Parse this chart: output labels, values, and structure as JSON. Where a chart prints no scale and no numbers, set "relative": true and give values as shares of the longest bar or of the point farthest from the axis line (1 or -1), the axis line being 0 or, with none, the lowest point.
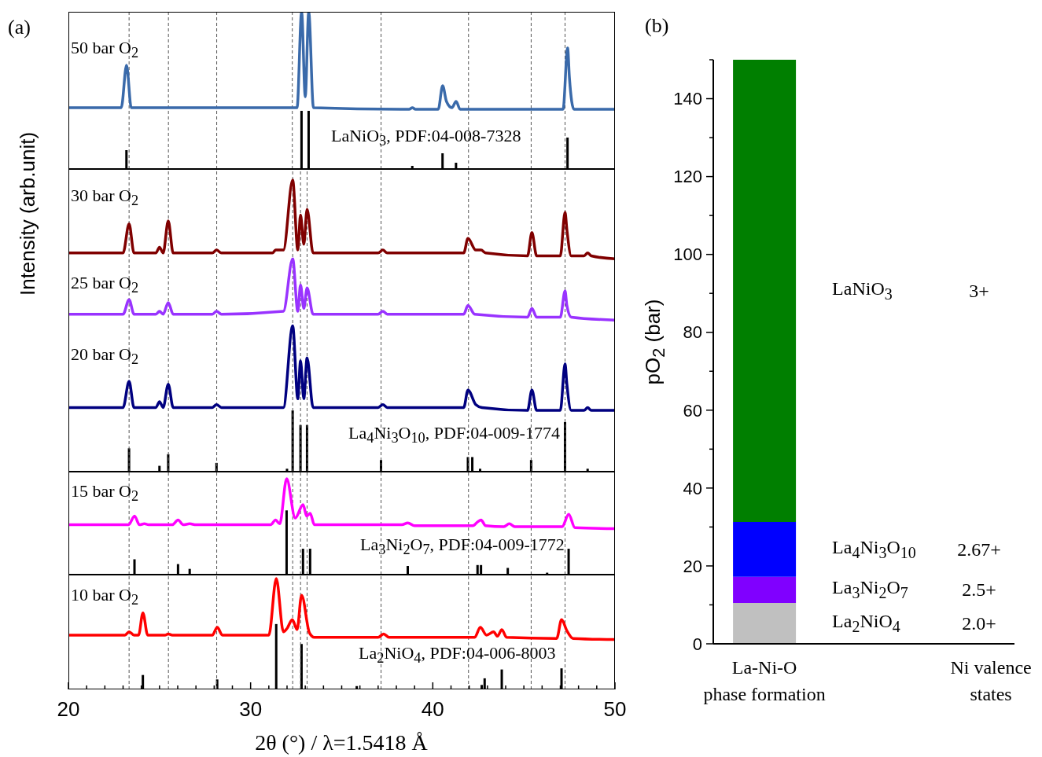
{
  "chart_data": [
    {
      "type": "line",
      "title": "(a)",
      "relative": true,
      "xlim": [
        20,
        50
      ],
      "tick_labels": false,
      "series": [
        {
          "name": "50 bar O$_{2}$",
          "color": "#3a6aaa",
          "x": [
            20,
            22.9,
            23.19,
            23.45,
            32.55,
            32.8,
            33.0,
            33.19,
            33.45,
            38.7,
            38.88,
            39.05,
            40.3,
            40.54,
            40.75,
            41.05,
            41.28,
            41.5,
            47.15,
            47.4,
            47.5,
            47.75,
            50
          ],
          "values": [
            0.39,
            0.39,
            0.66,
            0.39,
            0.39,
            1,
            0.46,
            1,
            0.39,
            0.38,
            0.39,
            0.38,
            0.38,
            0.53,
            0.43,
            0.39,
            0.43,
            0.38,
            0.38,
            0.77,
            0.58,
            0.38,
            0.38
          ]
        },
        {
          "type": "bar",
          "name": "LaNiO$_{3}$, PDF:04-008-7328",
          "color": "#000000",
          "x": [
            23.19,
            32.8,
            33.19,
            38.88,
            40.54,
            41.28,
            47.4
          ],
          "values": [
            0.12,
            0.37,
            0.37,
            0.02,
            0.1,
            0.04,
            0.2
          ]
        }
      ],
      "ref_lines": [
        {
          "axis": "x",
          "value": 23.33
        },
        {
          "axis": "x",
          "value": 25.49
        },
        {
          "axis": "x",
          "value": 28.14
        },
        {
          "axis": "x",
          "value": 32.29
        },
        {
          "axis": "x",
          "value": 37.16
        },
        {
          "axis": "x",
          "value": 41.96
        },
        {
          "axis": "x",
          "value": 45.4
        },
        {
          "axis": "x",
          "value": 47.26
        }
      ]
    },
    {
      "type": "line",
      "ylabel": "Intensity (arb.unit)",
      "relative": true,
      "xlim": [
        20,
        50
      ],
      "tick_labels": false,
      "series": [
        {
          "name": "30 bar O$_{2}$",
          "color": "#800000",
          "x": [
            20,
            23.0,
            23.33,
            23.6,
            24.8,
            25.0,
            25.2,
            25.48,
            25.75,
            27.9,
            28.13,
            28.4,
            31.2,
            31.37,
            31.8,
            32.31,
            32.59,
            32.74,
            32.92,
            33.1,
            33.43,
            37.0,
            37.26,
            37.5,
            41.7,
            41.93,
            42.36,
            42.65,
            42.9,
            45.2,
            45.44,
            45.7,
            47.0,
            47.26,
            47.36,
            47.6,
            48.3,
            48.5,
            48.7,
            50
          ],
          "values": [
            0.75,
            0.75,
            0.85,
            0.75,
            0.75,
            0.77,
            0.75,
            0.86,
            0.75,
            0.75,
            0.76,
            0.75,
            0.75,
            0.76,
            0.76,
            1.0,
            0.76,
            0.88,
            0.78,
            0.9,
            0.75,
            0.75,
            0.76,
            0.75,
            0.75,
            0.8,
            0.76,
            0.76,
            0.75,
            0.74,
            0.82,
            0.74,
            0.74,
            0.89,
            0.83,
            0.74,
            0.74,
            0.75,
            0.74,
            0.73
          ]
        },
        {
          "name": "25 bar O$_{2}$",
          "color": "#9933ff",
          "x": [
            20,
            23.0,
            23.33,
            23.6,
            24.8,
            25.0,
            25.2,
            25.48,
            25.75,
            27.9,
            28.13,
            28.4,
            31.8,
            32.31,
            32.59,
            32.74,
            32.92,
            33.1,
            33.43,
            37.0,
            37.26,
            37.5,
            41.7,
            41.93,
            42.3,
            45.2,
            45.44,
            45.7,
            47.0,
            47.26,
            47.36,
            47.6,
            50
          ],
          "values": [
            0.54,
            0.54,
            0.59,
            0.54,
            0.54,
            0.55,
            0.54,
            0.58,
            0.54,
            0.54,
            0.55,
            0.54,
            0.55,
            0.73,
            0.55,
            0.64,
            0.56,
            0.63,
            0.54,
            0.54,
            0.55,
            0.54,
            0.54,
            0.57,
            0.54,
            0.53,
            0.56,
            0.53,
            0.53,
            0.62,
            0.57,
            0.53,
            0.52
          ]
        },
        {
          "name": "20 bar O$_{2}$",
          "color": "#000080",
          "x": [
            20,
            23.0,
            23.33,
            23.6,
            24.8,
            25.0,
            25.2,
            25.48,
            25.75,
            27.9,
            28.13,
            28.4,
            31.8,
            32.31,
            32.59,
            32.74,
            32.92,
            33.1,
            33.43,
            37.0,
            37.26,
            37.5,
            41.7,
            41.93,
            42.36,
            42.7,
            45.2,
            45.44,
            45.7,
            47.0,
            47.26,
            47.36,
            47.6,
            48.3,
            48.5,
            48.7,
            50
          ],
          "values": [
            0.22,
            0.22,
            0.31,
            0.22,
            0.22,
            0.24,
            0.22,
            0.3,
            0.22,
            0.22,
            0.23,
            0.22,
            0.22,
            0.5,
            0.25,
            0.38,
            0.25,
            0.39,
            0.22,
            0.22,
            0.23,
            0.22,
            0.22,
            0.28,
            0.23,
            0.22,
            0.21,
            0.28,
            0.21,
            0.21,
            0.37,
            0.3,
            0.21,
            0.21,
            0.22,
            0.21,
            0.21
          ]
        },
        {
          "type": "bar",
          "name": "La$_{4}$Ni$_{3}$O$_{10}$, PDF:04-009-1774",
          "color": "#000000",
          "x": [
            23.33,
            25.0,
            25.48,
            28.13,
            32.0,
            32.31,
            32.74,
            33.1,
            37.16,
            41.93,
            42.17,
            42.6,
            45.4,
            47.26,
            48.5
          ],
          "values": [
            0.08,
            0.02,
            0.06,
            0.03,
            0.01,
            0.21,
            0.16,
            0.16,
            0.04,
            0.05,
            0.05,
            0.01,
            0.04,
            0.17,
            0.01
          ]
        }
      ],
      "ref_lines": [
        {
          "axis": "x",
          "value": 23.33
        },
        {
          "axis": "x",
          "value": 25.49
        },
        {
          "axis": "x",
          "value": 28.14
        },
        {
          "axis": "x",
          "value": 32.31
        },
        {
          "axis": "x",
          "value": 32.74
        },
        {
          "axis": "x",
          "value": 33.1
        },
        {
          "axis": "x",
          "value": 37.16
        },
        {
          "axis": "x",
          "value": 41.96
        },
        {
          "axis": "x",
          "value": 45.4
        },
        {
          "axis": "x",
          "value": 47.26
        }
      ]
    },
    {
      "type": "line",
      "relative": true,
      "xlim": [
        20,
        50
      ],
      "tick_labels": false,
      "series": [
        {
          "name": "15 bar O$_{2}$",
          "color": "#ff00ff",
          "x": [
            20,
            23.3,
            23.63,
            23.9,
            24.17,
            24.4,
            25.7,
            26.02,
            26.3,
            26.66,
            27.0,
            31.1,
            31.37,
            31.6,
            31.98,
            32.45,
            32.88,
            33.08,
            33.27,
            33.5,
            38.3,
            38.63,
            39.0,
            42.2,
            42.46,
            42.65,
            42.9,
            43.9,
            44.2,
            44.5,
            47.1,
            47.46,
            47.8,
            50
          ],
          "values": [
            0.52,
            0.52,
            0.61,
            0.52,
            0.53,
            0.52,
            0.52,
            0.57,
            0.52,
            0.53,
            0.52,
            0.52,
            0.57,
            0.53,
            1.0,
            0.59,
            0.73,
            0.61,
            0.64,
            0.52,
            0.52,
            0.54,
            0.51,
            0.51,
            0.55,
            0.57,
            0.51,
            0.5,
            0.53,
            0.5,
            0.5,
            0.63,
            0.49,
            0.48
          ]
        },
        {
          "type": "bar",
          "name": "La$_{3}$Ni$_{2}$O$_{7}$, PDF:04-009-1772",
          "color": "#000000",
          "x": [
            23.63,
            26.02,
            26.66,
            31.98,
            32.88,
            33.27,
            38.63,
            42.46,
            42.65,
            44.12,
            46.28,
            47.46
          ],
          "values": [
            0.16,
            0.11,
            0.06,
            0.67,
            0.27,
            0.27,
            0.09,
            0.1,
            0.1,
            0.07,
            0.02,
            0.27
          ]
        }
      ],
      "ref_lines": [
        {
          "axis": "x",
          "value": 23.33
        },
        {
          "axis": "x",
          "value": 25.49
        },
        {
          "axis": "x",
          "value": 28.14
        },
        {
          "axis": "x",
          "value": 32.31
        },
        {
          "axis": "x",
          "value": 32.74
        },
        {
          "axis": "x",
          "value": 33.1
        },
        {
          "axis": "x",
          "value": 37.16
        },
        {
          "axis": "x",
          "value": 41.96
        },
        {
          "axis": "x",
          "value": 45.4
        },
        {
          "axis": "x",
          "value": 47.26
        }
      ]
    },
    {
      "type": "line",
      "relative": true,
      "xlabel": "2θ (°) / λ=1.5418 Å",
      "xlim": [
        20,
        50
      ],
      "tick_labels": "x",
      "xticks": [
        20,
        {
          "value": 21,
          "label": null
        },
        {
          "value": 22,
          "label": null
        },
        {
          "value": 23,
          "label": null
        },
        {
          "value": 24,
          "label": null
        },
        {
          "value": 25,
          "label": null
        },
        {
          "value": 26,
          "label": null
        },
        {
          "value": 27,
          "label": null
        },
        {
          "value": 28,
          "label": null
        },
        {
          "value": 29,
          "label": null
        },
        30,
        {
          "value": 31,
          "label": null
        },
        {
          "value": 32,
          "label": null
        },
        {
          "value": 33,
          "label": null
        },
        {
          "value": 34,
          "label": null
        },
        {
          "value": 35,
          "label": null
        },
        {
          "value": 36,
          "label": null
        },
        {
          "value": 37,
          "label": null
        },
        {
          "value": 38,
          "label": null
        },
        {
          "value": 39,
          "label": null
        },
        40,
        {
          "value": 41,
          "label": null
        },
        {
          "value": 42,
          "label": null
        },
        {
          "value": 43,
          "label": null
        },
        {
          "value": 44,
          "label": null
        },
        {
          "value": 45,
          "label": null
        },
        {
          "value": 46,
          "label": null
        },
        {
          "value": 47,
          "label": null
        },
        {
          "value": 48,
          "label": null
        },
        {
          "value": 49,
          "label": null
        },
        50
      ],
      "series": [
        {
          "name": "10 bar O$_{2}$",
          "color": "#ff0000",
          "x": [
            20,
            23.1,
            23.33,
            23.6,
            23.85,
            24.09,
            24.35,
            25.3,
            25.48,
            25.7,
            27.9,
            28.17,
            28.45,
            31.0,
            31.41,
            31.8,
            32.0,
            32.29,
            32.55,
            32.8,
            33.23,
            33.5,
            37.0,
            37.3,
            37.6,
            42.3,
            42.61,
            42.95,
            43.34,
            43.55,
            43.79,
            44.05,
            46.8,
            47.07,
            47.36,
            47.7,
            50
          ],
          "values": [
            0.49,
            0.49,
            0.52,
            0.49,
            0.49,
            0.69,
            0.49,
            0.49,
            0.5,
            0.49,
            0.49,
            0.56,
            0.49,
            0.49,
            1.0,
            0.52,
            0.55,
            0.63,
            0.54,
            0.85,
            0.51,
            0.47,
            0.47,
            0.5,
            0.47,
            0.47,
            0.56,
            0.49,
            0.52,
            0.48,
            0.54,
            0.47,
            0.46,
            0.63,
            0.53,
            0.46,
            0.45
          ]
        },
        {
          "type": "bar",
          "name": "La$_{2}$NiO$_{4}$, PDF:04-006-8003",
          "color": "#000000",
          "x": [
            24.09,
            28.17,
            31.41,
            32.8,
            35.83,
            42.69,
            42.85,
            43.79,
            47.07
          ],
          "values": [
            0.13,
            0.09,
            0.59,
            0.41,
            0.03,
            0.04,
            0.1,
            0.18,
            0.19
          ]
        }
      ],
      "ref_lines": [
        {
          "axis": "x",
          "value": 23.33
        },
        {
          "axis": "x",
          "value": 25.49
        },
        {
          "axis": "x",
          "value": 28.14
        },
        {
          "axis": "x",
          "value": 32.31
        },
        {
          "axis": "x",
          "value": 32.74
        },
        {
          "axis": "x",
          "value": 33.1
        },
        {
          "axis": "x",
          "value": 37.16
        },
        {
          "axis": "x",
          "value": 41.96
        },
        {
          "axis": "x",
          "value": 45.4
        },
        {
          "axis": "x",
          "value": 47.26
        }
      ]
    },
    {
      "type": "bar",
      "title": "(b)",
      "stacked": true,
      "ylabel": "pO$_{2}$ (bar)",
      "categories": [
        "La-Ni-O\nphase formation",
        "Ni valence\nstates"
      ],
      "ylim": [
        0,
        150
      ],
      "yticks": [
        0,
        {
          "value": 10,
          "label": null
        },
        20,
        {
          "value": 30,
          "label": null
        },
        40,
        {
          "value": 50,
          "label": null
        },
        60,
        {
          "value": 70,
          "label": null
        },
        80,
        {
          "value": 90,
          "label": null
        },
        100,
        {
          "value": 110,
          "label": null
        },
        120,
        {
          "value": 130,
          "label": null
        },
        140,
        {
          "value": 150,
          "label": null
        }
      ],
      "series": [
        {
          "name": "La$_{2}$NiO$_{4}$",
          "color": "#c0c0c0",
          "values": [
            10.5,
            null
          ]
        },
        {
          "name": "La$_{3}$Ni$_{2}$O$_{7}$",
          "color": "#8000ff",
          "values": [
            6.7,
            null
          ]
        },
        {
          "name": "La$_{4}$Ni$_{3}$O$_{10}$",
          "color": "#0000ff",
          "values": [
            14.1,
            null
          ]
        },
        {
          "name": "LaNiO$_{3}$",
          "color": "#007f00",
          "values": [
            118.7,
            null
          ]
        }
      ],
      "annotations": [
        "2.0+",
        "2.5+",
        "2.67+",
        "3+"
      ]
    }
  ]
}
